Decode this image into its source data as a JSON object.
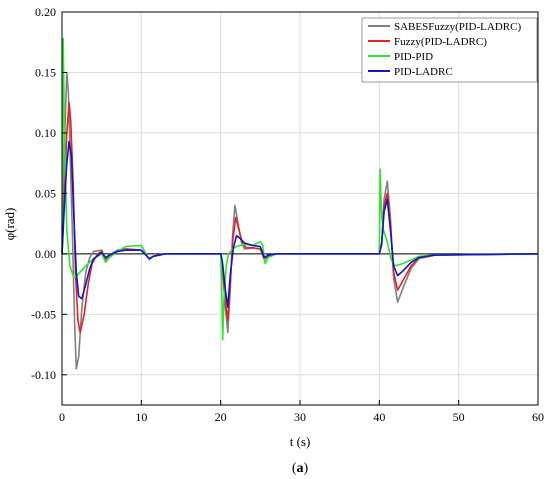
{
  "chart_data": {
    "type": "line",
    "xlabel": "t (s)",
    "ylabel": "φ(rad)",
    "xlim": [
      0,
      60
    ],
    "ylim": [
      -0.125,
      0.2
    ],
    "xticks": [
      0,
      10,
      20,
      30,
      40,
      50,
      60
    ],
    "yticks": [
      0.2,
      0.15,
      0.1,
      0.05,
      0.0,
      -0.05,
      -0.1
    ],
    "ytick_labels": [
      "0.20",
      "0.15",
      "0.10",
      "0.05",
      "0.00",
      "-0.05",
      "-0.10"
    ],
    "grid": true,
    "legend_position": "top-right",
    "caption": {
      "open": "(",
      "letter": "a",
      "close": ")"
    },
    "series": [
      {
        "name": "SABESFuzzy(PID-LADRC)",
        "color": "#808080",
        "x": [
          0,
          0.3,
          0.6,
          0.8,
          1.0,
          1.3,
          1.6,
          1.8,
          2.1,
          2.5,
          3.0,
          3.5,
          4.0,
          5.0,
          5.5,
          6.0,
          7.0,
          8.0,
          10.0,
          11.0,
          11.5,
          13.0,
          20.0,
          20.2,
          20.6,
          20.9,
          21.2,
          21.5,
          21.8,
          22.2,
          22.6,
          23.0,
          24.0,
          25.0,
          25.5,
          26.0,
          27.0,
          30.0,
          40.0,
          40.3,
          40.6,
          41.0,
          41.4,
          41.8,
          42.3,
          43.0,
          44.0,
          45.0,
          47.0,
          60.0
        ],
        "y": [
          0.0,
          0.09,
          0.15,
          0.135,
          0.09,
          0.02,
          -0.06,
          -0.095,
          -0.085,
          -0.045,
          -0.015,
          -0.003,
          0.002,
          0.003,
          -0.005,
          -0.001,
          0.003,
          0.004,
          0.003,
          -0.004,
          -0.002,
          0.0,
          0.0,
          -0.01,
          -0.045,
          -0.065,
          -0.03,
          0.015,
          0.04,
          0.025,
          0.01,
          0.004,
          0.005,
          0.004,
          -0.005,
          -0.002,
          0.0,
          0.0,
          0.0,
          0.01,
          0.045,
          0.06,
          0.03,
          -0.02,
          -0.04,
          -0.028,
          -0.012,
          -0.004,
          -0.001,
          0.0
        ]
      },
      {
        "name": "Fuzzy(PID-LADRC)",
        "color": "#e81f1f",
        "x": [
          0,
          0.3,
          0.6,
          0.9,
          1.1,
          1.4,
          1.7,
          2.0,
          2.3,
          2.8,
          3.3,
          3.8,
          4.5,
          5.0,
          5.5,
          6.0,
          7.0,
          8.0,
          10.0,
          11.0,
          11.5,
          13.0,
          20.0,
          20.2,
          20.6,
          20.9,
          21.2,
          21.5,
          21.9,
          22.3,
          22.7,
          23.2,
          24.0,
          25.0,
          25.5,
          26.0,
          27.0,
          30.0,
          40.0,
          40.3,
          40.6,
          41.0,
          41.4,
          41.8,
          42.3,
          43.0,
          44.0,
          45.0,
          47.0,
          60.0
        ],
        "y": [
          0.0,
          0.05,
          0.1,
          0.125,
          0.11,
          0.06,
          -0.015,
          -0.055,
          -0.065,
          -0.05,
          -0.025,
          -0.008,
          0.0,
          0.002,
          -0.004,
          -0.001,
          0.002,
          0.004,
          0.003,
          -0.004,
          -0.002,
          0.0,
          0.0,
          -0.008,
          -0.04,
          -0.055,
          -0.025,
          0.01,
          0.03,
          0.02,
          0.01,
          0.005,
          0.005,
          0.004,
          -0.004,
          -0.002,
          0.0,
          0.0,
          0.0,
          0.008,
          0.04,
          0.05,
          0.025,
          -0.015,
          -0.03,
          -0.022,
          -0.01,
          -0.003,
          -0.001,
          0.0
        ]
      },
      {
        "name": "PID-PID",
        "color": "#2ee52e",
        "x": [
          0,
          0.15,
          0.3,
          0.6,
          1.0,
          1.5,
          2.0,
          3.0,
          4.0,
          5.0,
          5.5,
          6.0,
          7.0,
          8.0,
          10.0,
          11.0,
          11.5,
          13.0,
          20.0,
          20.1,
          20.25,
          20.4,
          20.7,
          21.0,
          21.5,
          22.0,
          23.0,
          24.0,
          25.0,
          25.3,
          25.6,
          26.0,
          27.0,
          30.0,
          40.0,
          40.1,
          40.3,
          40.5,
          41.0,
          41.5,
          42.0,
          43.0,
          44.0,
          45.0,
          47.0,
          60.0
        ],
        "y": [
          0.0,
          0.178,
          0.1,
          0.02,
          -0.01,
          -0.02,
          -0.017,
          -0.01,
          -0.004,
          0.0,
          -0.007,
          -0.003,
          0.002,
          0.006,
          0.007,
          -0.005,
          -0.002,
          0.0,
          0.0,
          -0.02,
          -0.071,
          -0.04,
          -0.01,
          0.0,
          0.004,
          0.006,
          0.008,
          0.007,
          0.01,
          0.007,
          -0.008,
          -0.003,
          0.0,
          0.0,
          0.0,
          0.07,
          0.03,
          0.02,
          0.01,
          -0.005,
          -0.01,
          -0.008,
          -0.005,
          -0.002,
          -0.001,
          0.0
        ]
      },
      {
        "name": "PID-LADRC",
        "color": "#1414c8",
        "x": [
          0,
          0.3,
          0.6,
          0.9,
          1.2,
          1.5,
          1.8,
          2.1,
          2.5,
          3.0,
          3.5,
          4.0,
          5.0,
          5.5,
          6.0,
          7.0,
          8.0,
          10.0,
          11.0,
          11.5,
          13.0,
          20.0,
          20.2,
          20.6,
          20.9,
          21.2,
          21.6,
          22.0,
          22.4,
          23.0,
          24.0,
          25.0,
          25.5,
          26.0,
          27.0,
          30.0,
          40.0,
          40.3,
          40.6,
          41.0,
          41.4,
          41.8,
          42.3,
          43.0,
          44.0,
          45.0,
          47.0,
          60.0
        ],
        "y": [
          0.0,
          0.04,
          0.075,
          0.093,
          0.08,
          0.03,
          -0.015,
          -0.035,
          -0.037,
          -0.025,
          -0.012,
          -0.004,
          0.001,
          -0.003,
          -0.001,
          0.002,
          0.003,
          0.003,
          -0.004,
          -0.002,
          0.0,
          0.0,
          -0.006,
          -0.03,
          -0.044,
          -0.018,
          0.005,
          0.015,
          0.013,
          0.009,
          0.007,
          0.006,
          -0.003,
          -0.001,
          0.0,
          0.0,
          0.0,
          0.008,
          0.035,
          0.045,
          0.02,
          -0.01,
          -0.018,
          -0.014,
          -0.007,
          -0.003,
          -0.001,
          0.0
        ]
      }
    ]
  }
}
